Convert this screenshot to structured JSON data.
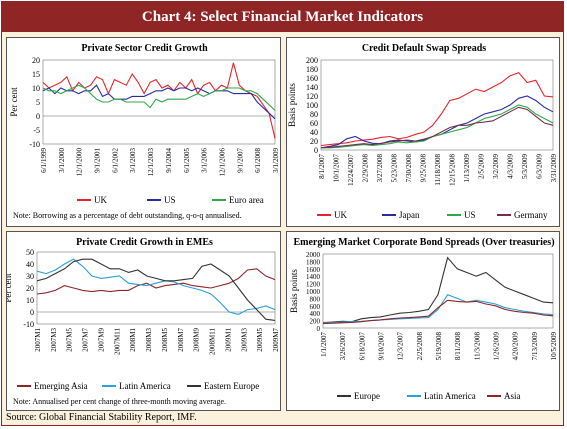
{
  "header": {
    "title": "Chart 4: Select Financial Market Indicators"
  },
  "source": "Source: Global Financial Stability Report, IMF.",
  "colors": {
    "frame": "#8f2525",
    "panel_bg": "#ffffff",
    "outer_bg": "#fbf1dc"
  },
  "chart_data": [
    {
      "id": "c1",
      "type": "line",
      "title": "Private Sector Credit Growth",
      "ylabel": "Per cent",
      "ylim": [
        -10,
        20
      ],
      "yticks": [
        -10,
        -5,
        0,
        5,
        10,
        15,
        20
      ],
      "xlabels": [
        "6/1/1999",
        "3/1/2000",
        "12/1/2000",
        "9/1/2001",
        "6/1/2002",
        "3/1/2003",
        "12/1/2003",
        "9/1/2004",
        "6/1/2005",
        "3/1/2006",
        "12/1/2006",
        "9/1/2007",
        "6/1/2008",
        "3/1/2009"
      ],
      "note": "Note: Borrowing as a percentage of debt outstanding, q-o-q annualised.",
      "series": [
        {
          "name": "UK",
          "color": "#e8242b",
          "values": [
            12,
            10,
            11,
            12,
            14,
            9,
            12,
            10,
            11,
            14,
            13,
            8,
            13,
            12,
            11,
            15,
            12,
            8,
            12,
            13,
            10,
            11,
            9,
            12,
            10,
            13,
            8,
            11,
            12,
            9,
            11,
            10,
            19,
            11,
            9,
            8,
            7,
            4,
            1,
            -8
          ]
        },
        {
          "name": "US",
          "color": "#2a2aa3",
          "values": [
            9,
            10,
            8,
            10,
            9,
            9,
            8,
            9,
            9,
            11,
            7,
            8,
            6,
            6,
            6,
            7,
            7,
            7,
            8,
            9,
            9,
            10,
            9,
            10,
            10,
            9,
            10,
            9,
            8,
            9,
            9,
            9,
            8,
            8,
            8,
            8,
            5,
            3,
            1,
            -1
          ]
        },
        {
          "name": "Euro area",
          "color": "#2da84a",
          "values": [
            10,
            9,
            9,
            8,
            9,
            10,
            11,
            10,
            8,
            6,
            5,
            5,
            6,
            6,
            5,
            5,
            5,
            5,
            3,
            6,
            5,
            6,
            6,
            6,
            6,
            7,
            8,
            7,
            8,
            9,
            9,
            10,
            10,
            10,
            9,
            9,
            8,
            6,
            4,
            2
          ]
        }
      ]
    },
    {
      "id": "c2",
      "type": "line",
      "title": "Credit Default Swap Spreads",
      "ylabel": "Basis points",
      "ylim": [
        0,
        200
      ],
      "yticks": [
        0,
        20,
        40,
        60,
        80,
        100,
        120,
        140,
        160,
        180,
        200
      ],
      "xlabels": [
        "8/1/2007",
        "10/1/2007",
        "12/24/2007",
        "2/29/2008",
        "3/27/2008",
        "5/23/2008",
        "7/30/2008",
        "9/25/2008",
        "11/18/2008",
        "12/15/2008",
        "1/13/2009",
        "2/5/2009",
        "3/2/2009",
        "4/3/2009",
        "5/3/2009",
        "6/3/2009",
        "3/31/2009"
      ],
      "series": [
        {
          "name": "UK",
          "color": "#e8242b",
          "values": [
            10,
            12,
            14,
            16,
            20,
            22,
            24,
            28,
            30,
            25,
            28,
            35,
            40,
            55,
            80,
            110,
            115,
            125,
            135,
            130,
            140,
            150,
            165,
            172,
            150,
            155,
            120,
            118
          ]
        },
        {
          "name": "Japan",
          "color": "#2a2aa3",
          "values": [
            5,
            8,
            12,
            25,
            30,
            20,
            15,
            14,
            20,
            22,
            20,
            18,
            22,
            30,
            35,
            45,
            55,
            60,
            70,
            80,
            85,
            90,
            100,
            115,
            120,
            110,
            95,
            85
          ]
        },
        {
          "name": "US",
          "color": "#2da84a",
          "values": [
            5,
            5,
            6,
            8,
            10,
            12,
            10,
            12,
            14,
            18,
            16,
            18,
            20,
            30,
            35,
            40,
            45,
            50,
            60,
            70,
            75,
            80,
            90,
            100,
            95,
            80,
            70,
            60
          ]
        },
        {
          "name": "Germany",
          "color": "#7a2b4a",
          "values": [
            5,
            6,
            8,
            10,
            12,
            14,
            12,
            15,
            18,
            20,
            22,
            20,
            24,
            30,
            40,
            50,
            55,
            55,
            60,
            62,
            65,
            75,
            85,
            95,
            90,
            75,
            60,
            55
          ]
        }
      ]
    },
    {
      "id": "c3",
      "type": "line",
      "title": "Private Credit Growth in EMEs",
      "ylabel": "Per cent",
      "ylim": [
        -10,
        50
      ],
      "yticks": [
        -10,
        0,
        10,
        20,
        30,
        40,
        50
      ],
      "xlabels": [
        "2007M1",
        "2007M3",
        "2007M5",
        "2007M7",
        "2007M9",
        "2007M11",
        "2008M1",
        "2008M3",
        "2008M5",
        "2008M7",
        "2008M9",
        "2008M11",
        "2009M1",
        "2009M3",
        "2009M5",
        "2009M7"
      ],
      "note": "Note: Annualised per cent change of three-month moving average.",
      "series": [
        {
          "name": "Emerging Asia",
          "color": "#8f2525",
          "values": [
            15,
            16,
            18,
            22,
            20,
            18,
            17,
            18,
            17,
            18,
            18,
            22,
            24,
            20,
            22,
            23,
            24,
            22,
            21,
            20,
            22,
            24,
            28,
            35,
            36,
            30,
            27
          ]
        },
        {
          "name": "Latin America",
          "color": "#2aa0dc",
          "values": [
            34,
            32,
            35,
            40,
            44,
            38,
            30,
            28,
            29,
            30,
            24,
            23,
            22,
            24,
            26,
            25,
            22,
            20,
            18,
            15,
            8,
            0,
            -2,
            2,
            3,
            5,
            2
          ]
        },
        {
          "name": "Eastern Europe",
          "color": "#333333",
          "values": [
            26,
            28,
            32,
            36,
            42,
            44,
            44,
            40,
            36,
            36,
            33,
            35,
            30,
            28,
            26,
            26,
            27,
            28,
            38,
            40,
            35,
            30,
            20,
            10,
            2,
            -6,
            -7
          ]
        }
      ]
    },
    {
      "id": "c4",
      "type": "line",
      "title": "Emerging Market Corporate Bond Spreads (Over treasuries)",
      "ylabel": "Basis points",
      "ylim": [
        0,
        2000
      ],
      "yticks": [
        0,
        100,
        200,
        300,
        400,
        500,
        600,
        700,
        800,
        900,
        1000,
        1100,
        1200,
        1300,
        1400,
        1500,
        1600,
        1700,
        1800,
        1900,
        2000
      ],
      "xlabels": [
        "1/1/2007",
        "3/26/2007",
        "6/18/2007",
        "9/10/2007",
        "12/3/2007",
        "2/25/2008",
        "5/19/2008",
        "8/11/2008",
        "11/3/2008",
        "1/26/2009",
        "4/20/2009",
        "7/13/2009",
        "10/5/2009"
      ],
      "series": [
        {
          "name": "Europe",
          "color": "#333333",
          "values": [
            150,
            160,
            180,
            170,
            250,
            280,
            300,
            350,
            400,
            420,
            450,
            500,
            900,
            1900,
            1600,
            1500,
            1400,
            1500,
            1300,
            1100,
            1000,
            900,
            800,
            700,
            680
          ]
        },
        {
          "name": "Latin America",
          "color": "#2aa0dc",
          "values": [
            140,
            150,
            160,
            170,
            180,
            200,
            220,
            230,
            250,
            260,
            270,
            280,
            500,
            900,
            800,
            700,
            750,
            700,
            650,
            550,
            500,
            450,
            420,
            380,
            360
          ]
        },
        {
          "name": "Asia",
          "color": "#8f2525",
          "values": [
            120,
            130,
            140,
            150,
            170,
            200,
            220,
            250,
            270,
            280,
            300,
            320,
            550,
            750,
            720,
            700,
            720,
            650,
            600,
            500,
            450,
            420,
            400,
            350,
            330
          ]
        }
      ]
    }
  ]
}
